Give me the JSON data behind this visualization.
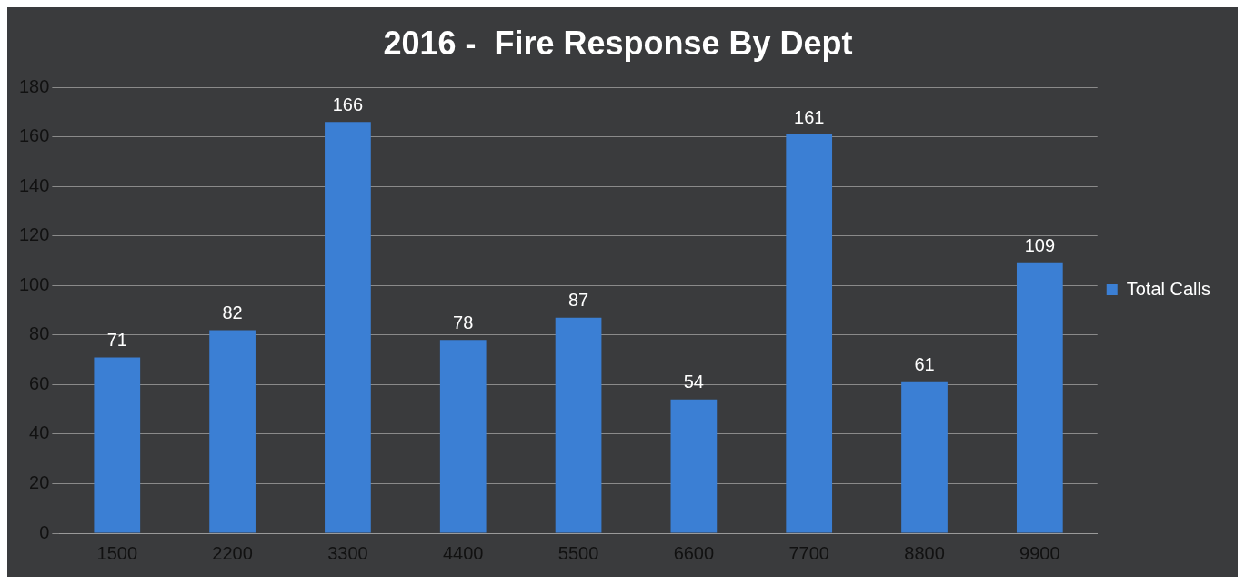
{
  "chart_data": {
    "type": "bar",
    "title": "2016 -  Fire Response By Dept",
    "categories": [
      "1500",
      "2200",
      "3300",
      "4400",
      "5500",
      "6600",
      "7700",
      "8800",
      "9900"
    ],
    "series": [
      {
        "name": "Total Calls",
        "color": "#3b7fd4",
        "values": [
          71,
          82,
          166,
          78,
          87,
          54,
          161,
          61,
          109
        ]
      }
    ],
    "ylim": [
      0,
      180
    ],
    "yticks": [
      0,
      20,
      40,
      60,
      80,
      100,
      120,
      140,
      160,
      180
    ],
    "grid": "y",
    "legend": "right",
    "data_labels": true
  }
}
